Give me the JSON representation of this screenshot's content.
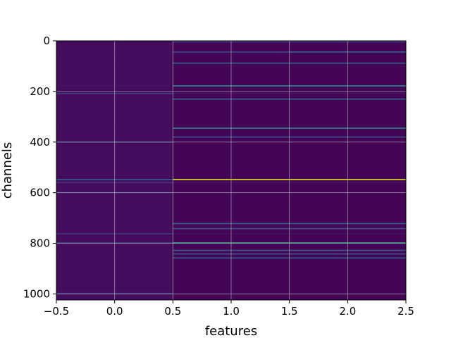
{
  "chart_data": {
    "type": "heatmap",
    "title": "",
    "xlabel": "features",
    "ylabel": "channels",
    "xlim": [
      -0.5,
      2.5
    ],
    "ylim": [
      1024,
      0
    ],
    "y_inverted": true,
    "grid": true,
    "colormap": "viridis",
    "x_ticks": [
      -0.5,
      0.0,
      0.5,
      1.0,
      1.5,
      2.0,
      2.5
    ],
    "x_tick_labels": [
      "−0.5",
      "0.0",
      "0.5",
      "1.0",
      "1.5",
      "2.0",
      "2.5"
    ],
    "y_ticks": [
      0,
      200,
      400,
      600,
      800,
      1000
    ],
    "y_tick_labels": [
      "0",
      "200",
      "400",
      "600",
      "800",
      "1000"
    ],
    "columns": [
      0,
      1,
      2
    ],
    "n_channels": 1024,
    "background_intensity": {
      "column_0": 0.03,
      "column_1": 0.01,
      "column_2": 0.01
    },
    "bright_channels": [
      {
        "channel": 4,
        "intensity": [
          0.04,
          0.18,
          0.18
        ]
      },
      {
        "channel": 44,
        "intensity": [
          0.04,
          0.22,
          0.35
        ]
      },
      {
        "channel": 88,
        "intensity": [
          0.04,
          0.3,
          0.3
        ]
      },
      {
        "channel": 178,
        "intensity": [
          0.05,
          0.5,
          0.5
        ]
      },
      {
        "channel": 208,
        "intensity": [
          0.18,
          0.05,
          0.05
        ]
      },
      {
        "channel": 230,
        "intensity": [
          0.04,
          0.3,
          0.3
        ]
      },
      {
        "channel": 345,
        "intensity": [
          0.04,
          0.45,
          0.45
        ]
      },
      {
        "channel": 380,
        "intensity": [
          0.04,
          0.25,
          0.25
        ]
      },
      {
        "channel": 400,
        "intensity": [
          0.22,
          0.05,
          0.05
        ]
      },
      {
        "channel": 548,
        "intensity": [
          0.3,
          0.95,
          0.95
        ]
      },
      {
        "channel": 560,
        "intensity": [
          0.15,
          0.05,
          0.05
        ]
      },
      {
        "channel": 600,
        "intensity": [
          0.18,
          0.05,
          0.05
        ]
      },
      {
        "channel": 722,
        "intensity": [
          0.04,
          0.3,
          0.3
        ]
      },
      {
        "channel": 742,
        "intensity": [
          0.04,
          0.25,
          0.25
        ]
      },
      {
        "channel": 762,
        "intensity": [
          0.15,
          0.05,
          0.05
        ]
      },
      {
        "channel": 798,
        "intensity": [
          0.18,
          0.55,
          0.55
        ]
      },
      {
        "channel": 828,
        "intensity": [
          0.04,
          0.3,
          0.3
        ]
      },
      {
        "channel": 842,
        "intensity": [
          0.04,
          0.25,
          0.25
        ]
      },
      {
        "channel": 858,
        "intensity": [
          0.04,
          0.3,
          0.3
        ]
      },
      {
        "channel": 998,
        "intensity": [
          0.2,
          0.05,
          0.05
        ]
      }
    ]
  }
}
